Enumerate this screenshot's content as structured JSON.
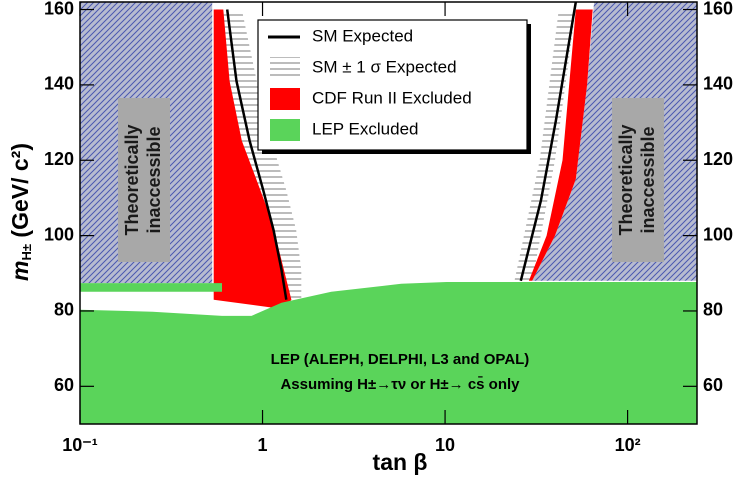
{
  "chart_data": {
    "type": "exclusion",
    "x_label": "tan β",
    "y_label": {
      "symbol": "m",
      "subscript": "H±",
      "unit": " (GeV/ c²)"
    },
    "xlim": [
      0.1,
      240
    ],
    "ylim": [
      50,
      162
    ],
    "log_x": true,
    "xticks": [
      {
        "value": 0.1,
        "label": "10⁻¹"
      },
      1,
      10,
      {
        "value": 100,
        "label": "10²"
      }
    ],
    "yticks": [
      60,
      80,
      100,
      120,
      140,
      160
    ],
    "curves": [
      {
        "name": "SM Expected",
        "color": "#000000",
        "x": [
          0.64,
          0.72,
          0.85,
          1.01,
          1.15,
          1.27,
          1.35,
          null,
          26,
          33.5,
          40.4,
          52
        ],
        "y": [
          160,
          141,
          125.2,
          112,
          101.4,
          90.9,
          83,
          null,
          88,
          109.3,
          130.4,
          162
        ]
      }
    ],
    "regions": [
      {
        "hatch": "diagonal",
        "color": "#4a58b0",
        "background": "#b7bbd0",
        "x": [
          0.1,
          0.53,
          0.53,
          0.1,
          null,
          30,
          40,
          52,
          60,
          65.5,
          240,
          240
        ],
        "y": [
          87.4,
          87.4,
          162,
          162,
          null,
          88,
          100,
          115,
          140,
          162,
          162,
          88
        ]
      },
      {
        "name": "SM ± 1 σ Expected",
        "hatch": "horizontal",
        "color": "#7a7a7a",
        "background": "#ffffff",
        "x": [
          0.57,
          0.61,
          0.69,
          0.82,
          0.93,
          1.05,
          1.15,
          1.63,
          1.63,
          1.53,
          1.35,
          1.12,
          0.93,
          0.77,
          null,
          24,
          33,
          42,
          52,
          40,
          30
        ],
        "y": [
          160,
          141,
          125.2,
          112,
          101.4,
          90.9,
          83,
          83,
          90.9,
          101.4,
          112,
          125.2,
          141,
          160,
          null,
          88,
          120,
          160,
          160,
          120,
          88
        ]
      },
      {
        "name": "CDF Run II Excluded",
        "color": "#ff0000",
        "x": [
          0.54,
          0.61,
          0.66,
          0.77,
          0.93,
          1.12,
          1.27,
          1.44,
          1.3,
          0.54,
          null,
          28.8,
          36,
          44,
          52,
          64.4,
          60,
          52,
          40,
          30
        ],
        "y": [
          160,
          160,
          141,
          125.2,
          114.6,
          104.1,
          93.5,
          83,
          80.5,
          83,
          null,
          88,
          100,
          120,
          160,
          160,
          140,
          115,
          100,
          88
        ]
      },
      {
        "name": "LEP Excluded",
        "color": "#5ad45a",
        "x": [
          0.1,
          0.25,
          0.6,
          0.87,
          1.27,
          2.38,
          5.75,
          10.2,
          240,
          240,
          0.1,
          null,
          0.1,
          0.6,
          0.6,
          0.1
        ],
        "y": [
          80.3,
          79.8,
          78.7,
          78.7,
          82.2,
          85.1,
          87.2,
          87.7,
          87.7,
          50,
          50,
          null,
          87.4,
          87.4,
          85.1,
          85.1
        ]
      }
    ],
    "side_labels": [
      [
        "Theoretically",
        "inaccessible"
      ],
      [
        "Theoretically",
        "inaccessible"
      ]
    ],
    "note": [
      "LEP (ALEPH, DELPHI, L3 and OPAL)",
      "Assuming H±→τν or H±→ cs̄ only"
    ]
  }
}
